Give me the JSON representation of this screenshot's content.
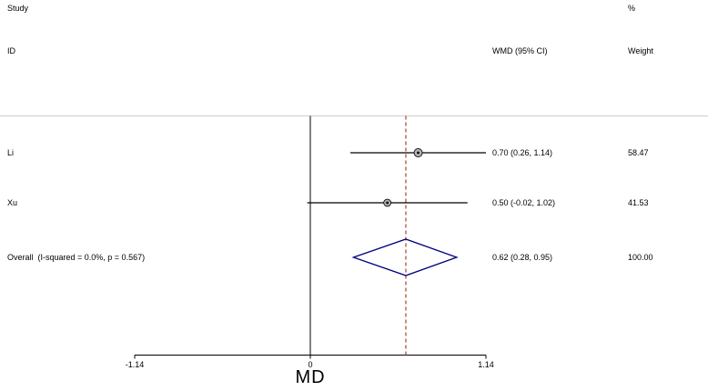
{
  "header": {
    "study_label": "Study",
    "percent_label": "%",
    "id_label": "ID",
    "wmd_label": "WMD (95% CI)",
    "weight_label": "Weight"
  },
  "colors": {
    "diamond": "#000080",
    "dashed_line": "#a0462d",
    "marker_fill": "#b0b0b0",
    "separator": "#cccccc",
    "line": "#000000"
  },
  "chart_data": {
    "type": "forest",
    "xlabel": "MD",
    "effect_measure": "WMD",
    "null_line": 0,
    "ticks": [
      -1.14,
      0,
      1.14
    ],
    "tick_labels": [
      "-1.14",
      "0",
      "1.14"
    ],
    "studies": [
      {
        "id": "Li",
        "wmd": 0.7,
        "ci_low": 0.26,
        "ci_high": 1.14,
        "wmd_label": "0.70 (0.26, 1.14)",
        "weight": 58.47,
        "weight_label": "58.47"
      },
      {
        "id": "Xu",
        "wmd": 0.5,
        "ci_low": -0.02,
        "ci_high": 1.02,
        "wmd_label": "0.50 (-0.02, 1.02)",
        "weight": 41.53,
        "weight_label": "41.53"
      }
    ],
    "overall": {
      "id": "Overall  (I-squared = 0.0%, p = 0.567)",
      "wmd": 0.62,
      "ci_low": 0.28,
      "ci_high": 0.95,
      "wmd_label": "0.62 (0.28, 0.95)",
      "weight": 100.0,
      "weight_label": "100.00",
      "i_squared": "0.0%",
      "p_value": "0.567"
    }
  }
}
